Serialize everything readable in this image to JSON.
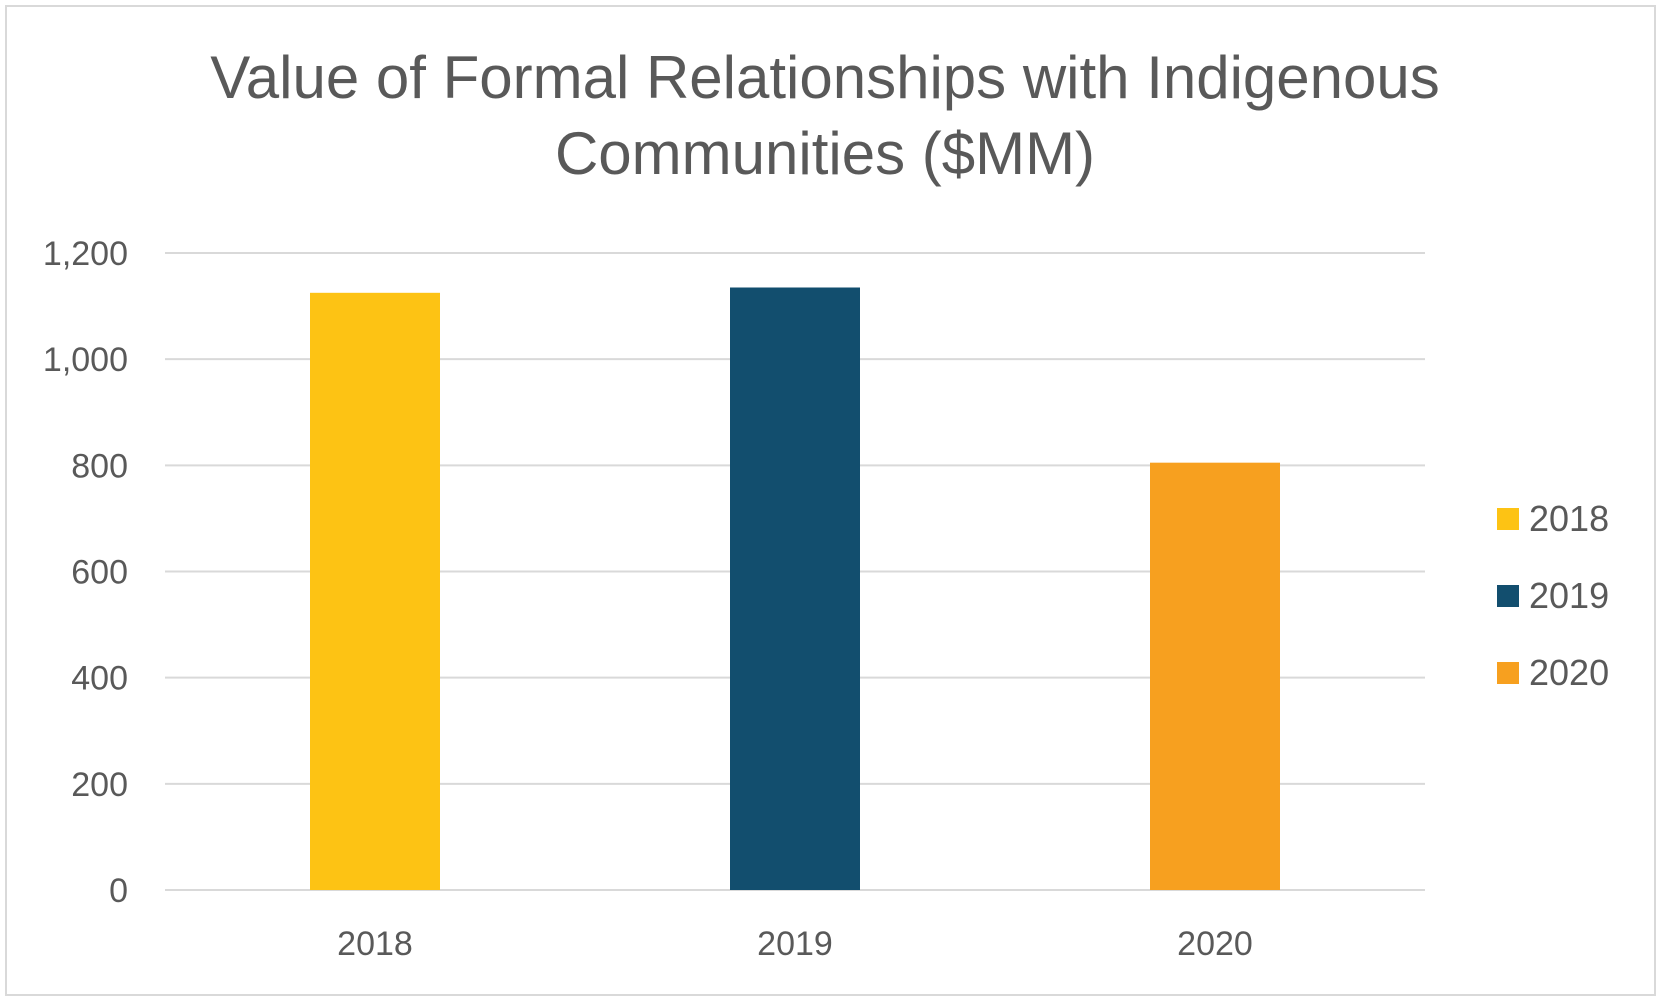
{
  "chart_data": {
    "type": "bar",
    "title": "Value of Formal Relationships with Indigenous Communities ($MM)",
    "title_lines": [
      "Value of Formal Relationships with Indigenous",
      "Communities ($MM)"
    ],
    "xlabel": "",
    "ylabel": "",
    "categories": [
      "2018",
      "2019",
      "2020"
    ],
    "values": [
      1125,
      1135,
      805
    ],
    "colors": [
      "#FDC314",
      "#124E6E",
      "#F7A01F"
    ],
    "ylim": [
      0,
      1200
    ],
    "yticks": [
      0,
      200,
      400,
      600,
      800,
      1000,
      1200
    ],
    "ytick_labels": [
      "0",
      "200",
      "400",
      "600",
      "800",
      "1,000",
      "1,200"
    ],
    "grid": true,
    "legend": {
      "placement": "right",
      "entries": [
        {
          "label": "2018",
          "color": "#FDC314"
        },
        {
          "label": "2019",
          "color": "#124E6E"
        },
        {
          "label": "2020",
          "color": "#F7A01F"
        }
      ]
    }
  }
}
